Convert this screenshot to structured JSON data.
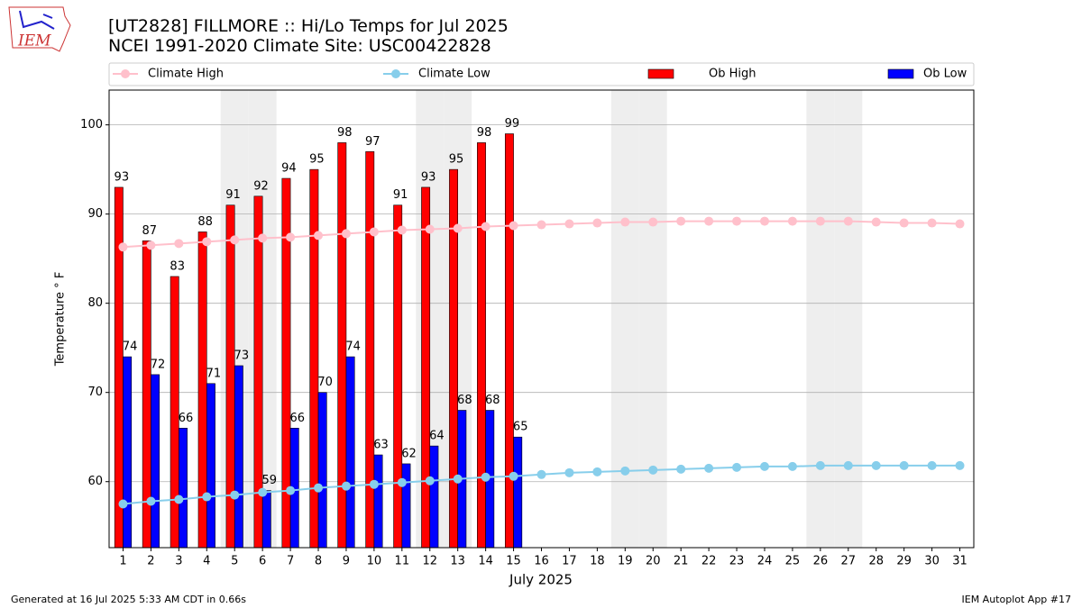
{
  "chart_data": {
    "type": "bar",
    "logo_text": "IEM",
    "title": "[UT2828] FILLMORE :: Hi/Lo Temps for Jul 2025",
    "subtitle": "NCEI 1991-2020 Climate Site: USC00422828",
    "x_label": "July 2025",
    "y_label": "Temperature ° F",
    "footer_left": "Generated at 16 Jul 2025 5:33 AM CDT in 0.66s",
    "footer_right": "IEM Autoplot App #17",
    "categories": [
      "1",
      "2",
      "3",
      "4",
      "5",
      "6",
      "7",
      "8",
      "9",
      "10",
      "11",
      "12",
      "13",
      "14",
      "15",
      "16",
      "17",
      "18",
      "19",
      "20",
      "21",
      "22",
      "23",
      "24",
      "25",
      "26",
      "27",
      "28",
      "29",
      "30",
      "31"
    ],
    "weekend_days": [
      "5",
      "6",
      "12",
      "13",
      "19",
      "20",
      "26",
      "27"
    ],
    "ylim": [
      52.6,
      103.9
    ],
    "yticks": [
      60,
      70,
      80,
      90,
      100
    ],
    "grid": true,
    "series": [
      {
        "name": "Climate High",
        "type": "line",
        "color": "#ffc0cb",
        "values": [
          86.3,
          86.5,
          86.7,
          86.9,
          87.1,
          87.3,
          87.4,
          87.6,
          87.8,
          88.0,
          88.2,
          88.3,
          88.4,
          88.6,
          88.7,
          88.8,
          88.9,
          89.0,
          89.1,
          89.1,
          89.2,
          89.2,
          89.2,
          89.2,
          89.2,
          89.2,
          89.2,
          89.1,
          89.0,
          89.0,
          88.9
        ]
      },
      {
        "name": "Climate Low",
        "type": "line",
        "color": "#87ceeb",
        "values": [
          57.5,
          57.8,
          58.0,
          58.3,
          58.5,
          58.8,
          59.0,
          59.3,
          59.5,
          59.7,
          59.9,
          60.1,
          60.3,
          60.5,
          60.6,
          60.8,
          61.0,
          61.1,
          61.2,
          61.3,
          61.4,
          61.5,
          61.6,
          61.7,
          61.7,
          61.8,
          61.8,
          61.8,
          61.8,
          61.8,
          61.8
        ]
      },
      {
        "name": "Ob High",
        "type": "bar",
        "color": "#ff0000",
        "values": [
          93,
          87,
          83,
          88,
          91,
          92,
          94,
          95,
          98,
          97,
          91,
          93,
          95,
          98,
          99,
          null,
          null,
          null,
          null,
          null,
          null,
          null,
          null,
          null,
          null,
          null,
          null,
          null,
          null,
          null,
          null
        ]
      },
      {
        "name": "Ob Low",
        "type": "bar",
        "color": "#0000ff",
        "values": [
          74,
          72,
          66,
          71,
          73,
          59,
          66,
          70,
          74,
          63,
          62,
          64,
          68,
          68,
          65,
          null,
          null,
          null,
          null,
          null,
          null,
          null,
          null,
          null,
          null,
          null,
          null,
          null,
          null,
          null,
          null
        ]
      }
    ]
  }
}
